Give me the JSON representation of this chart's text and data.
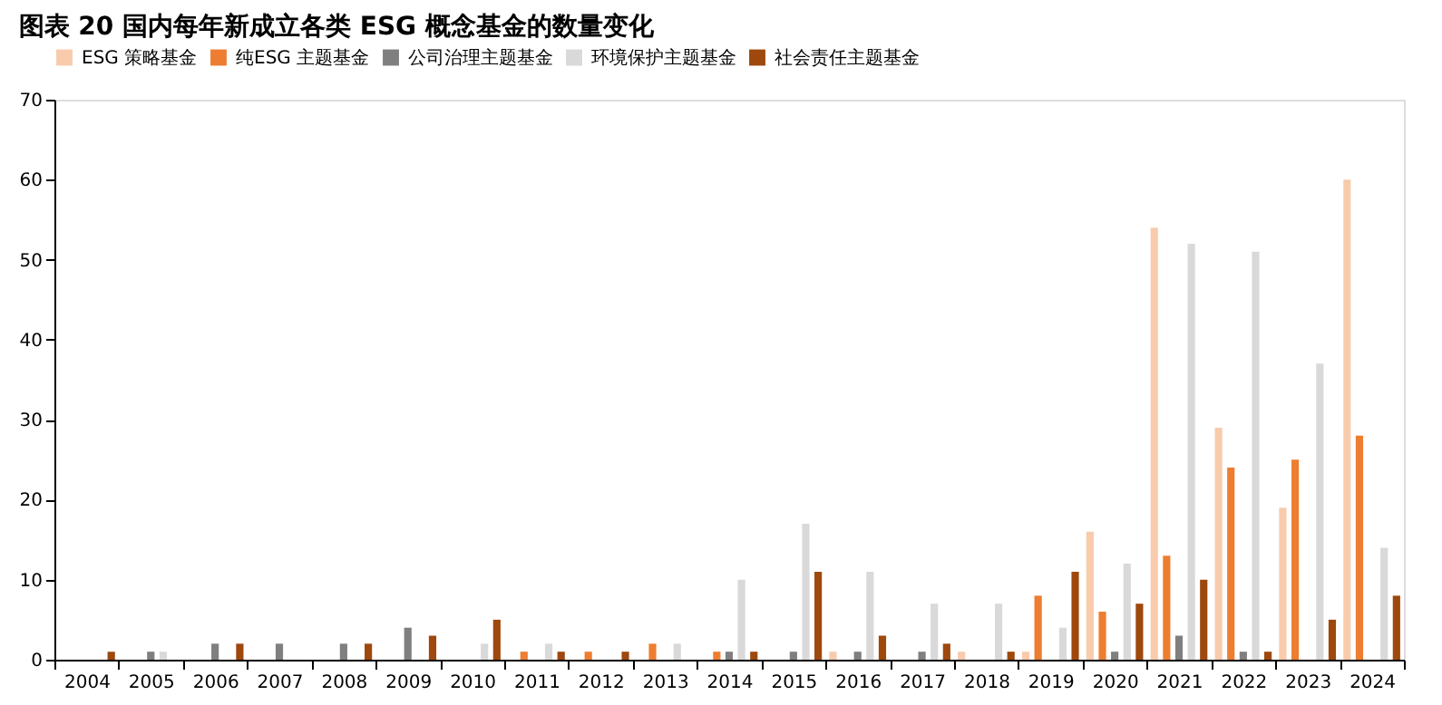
{
  "chart_data": {
    "type": "bar",
    "title": "图表 20  国内每年新成立各类 ESG 概念基金的数量变化",
    "categories": [
      "2004",
      "2005",
      "2006",
      "2007",
      "2008",
      "2009",
      "2010",
      "2011",
      "2012",
      "2013",
      "2014",
      "2015",
      "2016",
      "2017",
      "2018",
      "2019",
      "2020",
      "2021",
      "2022",
      "2023",
      "2024"
    ],
    "series": [
      {
        "name": "ESG 策略基金",
        "color": "#f8cbad",
        "values": [
          0,
          0,
          0,
          0,
          0,
          0,
          0,
          0,
          0,
          0,
          0,
          0,
          1,
          0,
          1,
          1,
          16,
          54,
          29,
          19,
          60
        ]
      },
      {
        "name": "纯ESG 主题基金",
        "color": "#ed7d31",
        "values": [
          0,
          0,
          0,
          0,
          0,
          0,
          0,
          1,
          1,
          2,
          1,
          0,
          0,
          0,
          0,
          8,
          6,
          13,
          24,
          25,
          28
        ]
      },
      {
        "name": "公司治理主题基金",
        "color": "#7f7f7f",
        "values": [
          0,
          1,
          2,
          2,
          2,
          4,
          0,
          0,
          0,
          0,
          1,
          1,
          1,
          1,
          0,
          0,
          1,
          3,
          1,
          0,
          0
        ]
      },
      {
        "name": "环境保护主题基金",
        "color": "#d9d9d9",
        "values": [
          0,
          1,
          0,
          0,
          0,
          0,
          2,
          2,
          0,
          2,
          10,
          17,
          11,
          7,
          7,
          4,
          12,
          52,
          51,
          37,
          14
        ]
      },
      {
        "name": "社会责任主题基金",
        "color": "#9e480e",
        "values": [
          1,
          0,
          2,
          0,
          2,
          3,
          5,
          1,
          1,
          0,
          1,
          11,
          3,
          2,
          1,
          11,
          7,
          10,
          1,
          5,
          8
        ]
      }
    ],
    "ylim": [
      0,
      70
    ],
    "yticks": [
      0,
      10,
      20,
      30,
      40,
      50,
      60,
      70
    ],
    "grid": false,
    "legend": "top"
  }
}
